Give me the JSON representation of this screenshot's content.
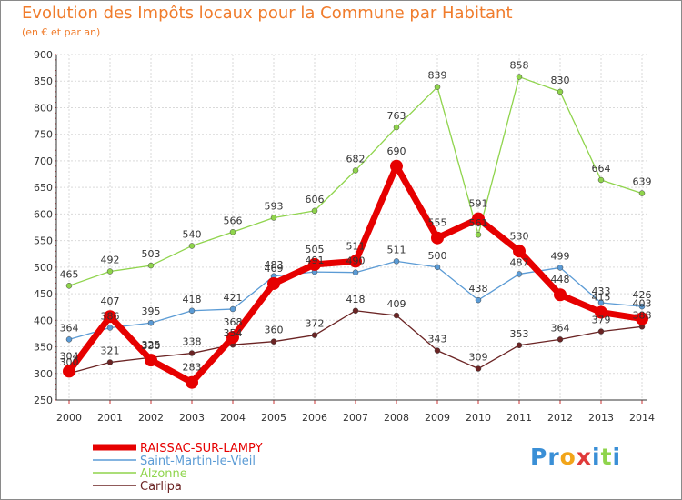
{
  "chart_data": {
    "type": "line",
    "title": "Evolution des Impôts locaux pour la Commune par Habitant",
    "subtitle": "(en € et par an)",
    "xlabel": "",
    "ylabel": "",
    "ylim": [
      250,
      900
    ],
    "yticks": [
      250,
      300,
      350,
      400,
      450,
      500,
      550,
      600,
      650,
      700,
      750,
      800,
      850,
      900
    ],
    "categories": [
      "2000",
      "2001",
      "2002",
      "2003",
      "2004",
      "2005",
      "2006",
      "2007",
      "2008",
      "2009",
      "2010",
      "2011",
      "2012",
      "2013",
      "2014"
    ],
    "series": [
      {
        "name": "Alzonne",
        "color": "#8fd44c",
        "values": [
          465,
          492,
          503,
          540,
          566,
          593,
          606,
          682,
          763,
          839,
          561,
          858,
          830,
          664,
          639
        ]
      },
      {
        "name": "Saint-Martin-le-Vieil",
        "color": "#5b9bd5",
        "values": [
          364,
          386,
          395,
          418,
          421,
          483,
          491,
          490,
          511,
          500,
          438,
          487,
          499,
          433,
          426
        ]
      },
      {
        "name": "Carlipa",
        "color": "#6b2424",
        "values": [
          300,
          321,
          330,
          338,
          354,
          360,
          372,
          418,
          409,
          343,
          309,
          353,
          364,
          379,
          388
        ]
      },
      {
        "name": "RAISSAC-SUR-LAMPY",
        "color": "#e60000",
        "values": [
          304,
          407,
          325,
          283,
          368,
          469,
          505,
          511,
          690,
          555,
          591,
          530,
          448,
          415,
          403
        ]
      }
    ],
    "legend": [
      "RAISSAC-SUR-LAMPY",
      "Saint-Martin-le-Vieil",
      "Alzonne",
      "Carlipa"
    ],
    "legend_position": "bottom-left"
  },
  "branding": {
    "logo_text": "Proxiti"
  }
}
